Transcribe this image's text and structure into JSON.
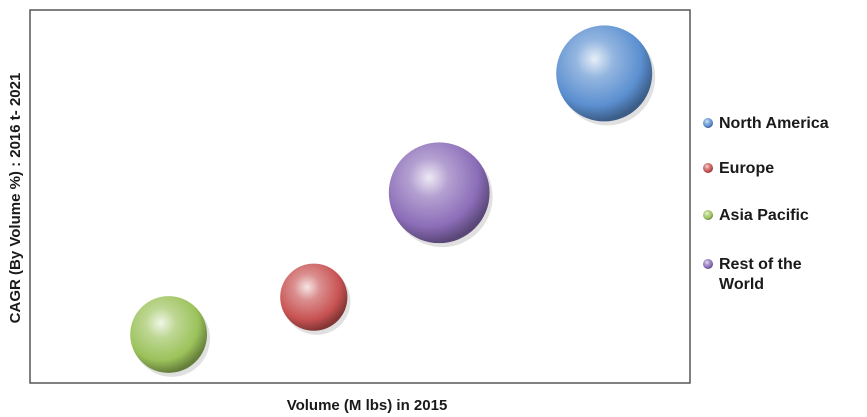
{
  "chart_data": {
    "type": "bubble",
    "title": "",
    "xlabel": "Volume (M lbs) in 2015",
    "ylabel": "CAGR (By Volume %) : 2016 t- 2021",
    "grid": false,
    "legend_position": "right",
    "series": [
      {
        "name": "North America",
        "color": "#5b8fd0",
        "x": 0.87,
        "y": 0.83,
        "size": 1.0
      },
      {
        "name": "Europe",
        "color": "#c85252",
        "x": 0.43,
        "y": 0.23,
        "size": 0.7
      },
      {
        "name": "Asia Pacific",
        "color": "#9bc25a",
        "x": 0.21,
        "y": 0.13,
        "size": 0.8
      },
      {
        "name": "Rest of the World",
        "color": "#8b6db8",
        "x": 0.62,
        "y": 0.51,
        "size": 1.05
      }
    ]
  }
}
